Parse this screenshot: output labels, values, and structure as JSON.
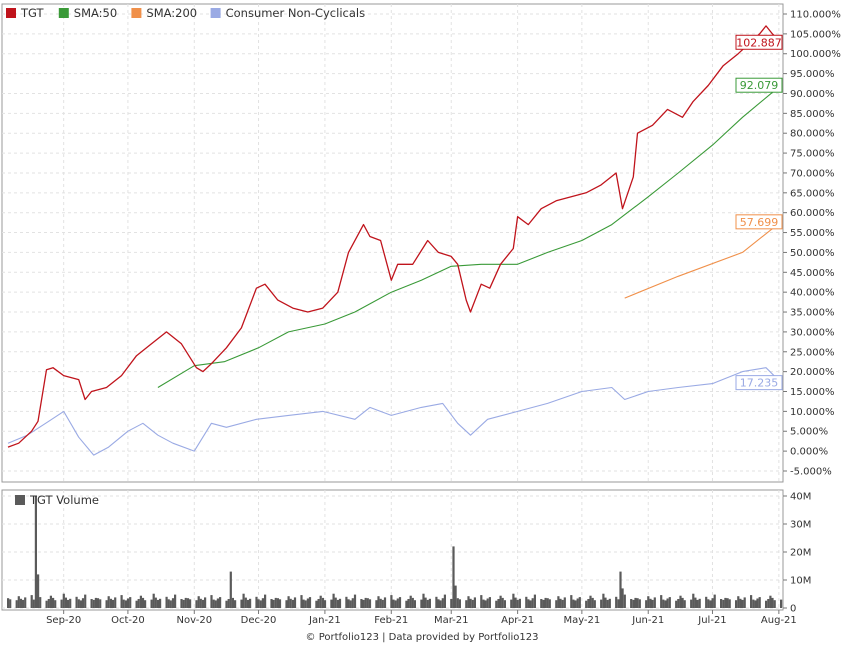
{
  "chart_data": [
    {
      "type": "line",
      "y_unit": "%",
      "ylim": [
        -5,
        110
      ],
      "y_ticks": [
        "110.000%",
        "105.000%",
        "100.000%",
        "95.000%",
        "90.000%",
        "85.000%",
        "80.000%",
        "75.000%",
        "70.000%",
        "65.000%",
        "60.000%",
        "55.000%",
        "50.000%",
        "45.000%",
        "40.000%",
        "35.000%",
        "30.000%",
        "25.000%",
        "20.000%",
        "15.000%",
        "10.000%",
        "5.000%",
        "0.000%",
        "-5.000%"
      ],
      "x_ticks": [
        "Sep-20",
        "Oct-20",
        "Nov-20",
        "Dec-20",
        "Jan-21",
        "Feb-21",
        "Mar-21",
        "Apr-21",
        "May-21",
        "Jun-21",
        "Jul-21",
        "Aug-21"
      ],
      "grid": true,
      "legend_position": "top-left",
      "series": [
        {
          "name": "TGT",
          "color": "#c0141c",
          "last_label": "102.887",
          "points": [
            [
              "2020-08-06",
              1
            ],
            [
              "2020-08-11",
              2
            ],
            [
              "2020-08-17",
              5
            ],
            [
              "2020-08-20",
              7.5
            ],
            [
              "2020-08-24",
              20.5
            ],
            [
              "2020-08-27",
              21
            ],
            [
              "2020-09-01",
              19
            ],
            [
              "2020-09-08",
              18
            ],
            [
              "2020-09-11",
              13
            ],
            [
              "2020-09-14",
              15
            ],
            [
              "2020-09-21",
              16
            ],
            [
              "2020-09-28",
              19
            ],
            [
              "2020-10-05",
              24
            ],
            [
              "2020-10-12",
              27
            ],
            [
              "2020-10-19",
              30
            ],
            [
              "2020-10-26",
              27
            ],
            [
              "2020-11-02",
              21
            ],
            [
              "2020-11-05",
              20
            ],
            [
              "2020-11-09",
              22
            ],
            [
              "2020-11-16",
              26
            ],
            [
              "2020-11-23",
              31
            ],
            [
              "2020-11-30",
              41
            ],
            [
              "2020-12-04",
              42
            ],
            [
              "2020-12-10",
              38
            ],
            [
              "2020-12-17",
              36
            ],
            [
              "2020-12-24",
              35
            ],
            [
              "2020-12-31",
              36
            ],
            [
              "2021-01-07",
              40
            ],
            [
              "2021-01-12",
              50
            ],
            [
              "2021-01-19",
              57
            ],
            [
              "2021-01-22",
              54
            ],
            [
              "2021-01-27",
              53
            ],
            [
              "2021-02-01",
              43
            ],
            [
              "2021-02-04",
              47
            ],
            [
              "2021-02-11",
              47
            ],
            [
              "2021-02-18",
              53
            ],
            [
              "2021-02-23",
              50
            ],
            [
              "2021-03-01",
              49
            ],
            [
              "2021-03-04",
              47
            ],
            [
              "2021-03-08",
              38
            ],
            [
              "2021-03-10",
              35
            ],
            [
              "2021-03-15",
              42
            ],
            [
              "2021-03-19",
              41
            ],
            [
              "2021-03-24",
              47
            ],
            [
              "2021-03-30",
              51
            ],
            [
              "2021-04-01",
              59
            ],
            [
              "2021-04-06",
              57
            ],
            [
              "2021-04-12",
              61
            ],
            [
              "2021-04-19",
              63
            ],
            [
              "2021-04-26",
              64
            ],
            [
              "2021-05-03",
              65
            ],
            [
              "2021-05-10",
              67
            ],
            [
              "2021-05-17",
              70
            ],
            [
              "2021-05-20",
              61
            ],
            [
              "2021-05-25",
              69
            ],
            [
              "2021-05-27",
              80
            ],
            [
              "2021-06-03",
              82
            ],
            [
              "2021-06-10",
              86
            ],
            [
              "2021-06-17",
              84
            ],
            [
              "2021-06-22",
              88
            ],
            [
              "2021-06-29",
              92
            ],
            [
              "2021-07-06",
              97
            ],
            [
              "2021-07-13",
              100
            ],
            [
              "2021-07-19",
              103
            ],
            [
              "2021-07-23",
              105
            ],
            [
              "2021-07-26",
              107
            ],
            [
              "2021-07-29",
              105
            ],
            [
              "2021-08-02",
              102.887
            ]
          ]
        },
        {
          "name": "SMA:50",
          "color": "#3a9a38",
          "last_label": "92.079",
          "points": [
            [
              "2020-10-15",
              16
            ],
            [
              "2020-11-01",
              21.5
            ],
            [
              "2020-11-15",
              22.5
            ],
            [
              "2020-12-01",
              26
            ],
            [
              "2020-12-15",
              30
            ],
            [
              "2021-01-01",
              32
            ],
            [
              "2021-01-15",
              35
            ],
            [
              "2021-02-01",
              40
            ],
            [
              "2021-02-15",
              43
            ],
            [
              "2021-03-01",
              46.5
            ],
            [
              "2021-03-15",
              47
            ],
            [
              "2021-04-01",
              47
            ],
            [
              "2021-04-15",
              50
            ],
            [
              "2021-05-01",
              53
            ],
            [
              "2021-05-15",
              57
            ],
            [
              "2021-06-01",
              64
            ],
            [
              "2021-06-15",
              70
            ],
            [
              "2021-07-01",
              77
            ],
            [
              "2021-07-15",
              84
            ],
            [
              "2021-08-02",
              92.079
            ]
          ]
        },
        {
          "name": "SMA:200",
          "color": "#f0904a",
          "last_label": "57.699",
          "points": [
            [
              "2021-05-21",
              38.5
            ],
            [
              "2021-06-15",
              44
            ],
            [
              "2021-07-15",
              50
            ],
            [
              "2021-08-02",
              57.699
            ]
          ]
        },
        {
          "name": "Consumer Non-Cyclicals",
          "color": "#9aaae4",
          "last_label": "17.235",
          "points": [
            [
              "2020-08-06",
              2
            ],
            [
              "2020-08-15",
              4
            ],
            [
              "2020-08-25",
              7.5
            ],
            [
              "2020-09-01",
              10
            ],
            [
              "2020-09-08",
              3.5
            ],
            [
              "2020-09-15",
              -1
            ],
            [
              "2020-09-22",
              1
            ],
            [
              "2020-10-01",
              5
            ],
            [
              "2020-10-08",
              7
            ],
            [
              "2020-10-15",
              4
            ],
            [
              "2020-10-22",
              2
            ],
            [
              "2020-11-01",
              0
            ],
            [
              "2020-11-09",
              7
            ],
            [
              "2020-11-16",
              6
            ],
            [
              "2020-11-30",
              8
            ],
            [
              "2020-12-15",
              9
            ],
            [
              "2020-12-31",
              10
            ],
            [
              "2021-01-15",
              8
            ],
            [
              "2021-01-22",
              11
            ],
            [
              "2021-02-01",
              9
            ],
            [
              "2021-02-15",
              11
            ],
            [
              "2021-02-25",
              12
            ],
            [
              "2021-03-04",
              7
            ],
            [
              "2021-03-10",
              4
            ],
            [
              "2021-03-18",
              8
            ],
            [
              "2021-04-01",
              10
            ],
            [
              "2021-04-15",
              12
            ],
            [
              "2021-05-01",
              15
            ],
            [
              "2021-05-15",
              16
            ],
            [
              "2021-05-21",
              13
            ],
            [
              "2021-06-01",
              15
            ],
            [
              "2021-06-15",
              16
            ],
            [
              "2021-07-01",
              17
            ],
            [
              "2021-07-15",
              20
            ],
            [
              "2021-07-26",
              21
            ],
            [
              "2021-08-02",
              17.235
            ]
          ]
        }
      ]
    },
    {
      "type": "bar",
      "title": "TGT Volume",
      "ylim": [
        0,
        40
      ],
      "y_ticks": [
        "40M",
        "30M",
        "20M",
        "10M",
        "0"
      ],
      "bar_color": "#5a5a5a",
      "spikes": [
        {
          "date": "2020-08-19",
          "value": 40
        },
        {
          "date": "2020-08-20",
          "value": 12
        },
        {
          "date": "2020-11-18",
          "value": 13
        },
        {
          "date": "2021-03-02",
          "value": 22
        },
        {
          "date": "2021-03-03",
          "value": 8
        },
        {
          "date": "2021-05-19",
          "value": 13
        },
        {
          "date": "2021-05-20",
          "value": 7
        }
      ],
      "baseline_values": [
        3.5,
        3.1,
        2.8,
        4.2,
        3.3,
        2.9,
        3.8,
        4.6,
        3.0,
        2.7,
        3.4,
        3.9,
        2.6,
        3.2,
        4.4,
        3.6,
        2.8,
        3.0,
        5.1,
        3.7,
        2.9,
        3.3,
        4.0,
        3.1,
        2.7,
        3.5,
        4.8,
        3.2,
        2.9,
        3.6
      ]
    }
  ],
  "footer": {
    "text": "© Portfolio123 | Data provided by Portfolio123"
  }
}
